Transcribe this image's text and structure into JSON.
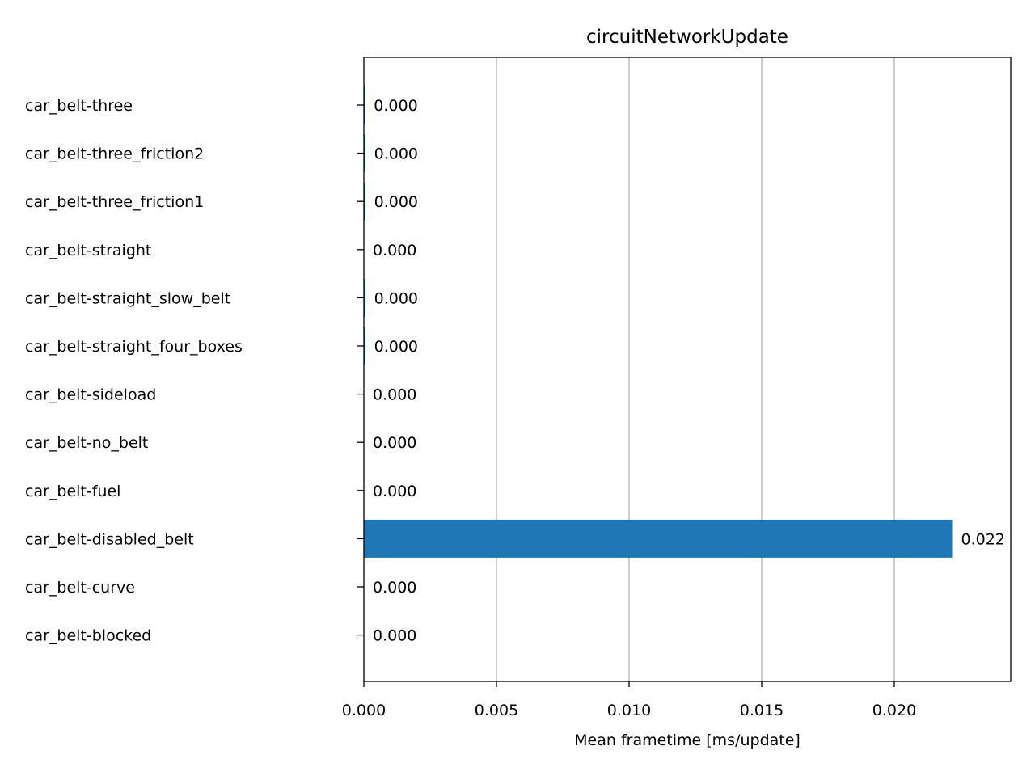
{
  "chart_data": {
    "type": "bar",
    "orientation": "horizontal",
    "title": "circuitNetworkUpdate",
    "xlabel": "Mean frametime [ms/update]",
    "ylabel": "",
    "categories": [
      "car_belt-three",
      "car_belt-three_friction2",
      "car_belt-three_friction1",
      "car_belt-straight",
      "car_belt-straight_slow_belt",
      "car_belt-straight_four_boxes",
      "car_belt-sideload",
      "car_belt-no_belt",
      "car_belt-fuel",
      "car_belt-disabled_belt",
      "car_belt-curve",
      "car_belt-blocked"
    ],
    "values": [
      4e-05,
      5e-05,
      5e-05,
      0.0,
      5e-05,
      5e-05,
      0.0,
      0.0,
      0.0,
      0.02218,
      0.0,
      0.0
    ],
    "value_labels": [
      "0.000",
      "0.000",
      "0.000",
      "0.000",
      "0.000",
      "0.000",
      "0.000",
      "0.000",
      "0.000",
      "0.022",
      "0.000",
      "0.000"
    ],
    "xticks": [
      "0.000",
      "0.005",
      "0.010",
      "0.015",
      "0.020"
    ],
    "xtick_values": [
      0.0,
      0.005,
      0.01,
      0.015,
      0.02
    ],
    "xlim": [
      0.0,
      0.02439
    ],
    "grid": "x-major",
    "legend": "none",
    "bar_color": "#1f77b4",
    "grid_color": "#b0b0b0"
  }
}
